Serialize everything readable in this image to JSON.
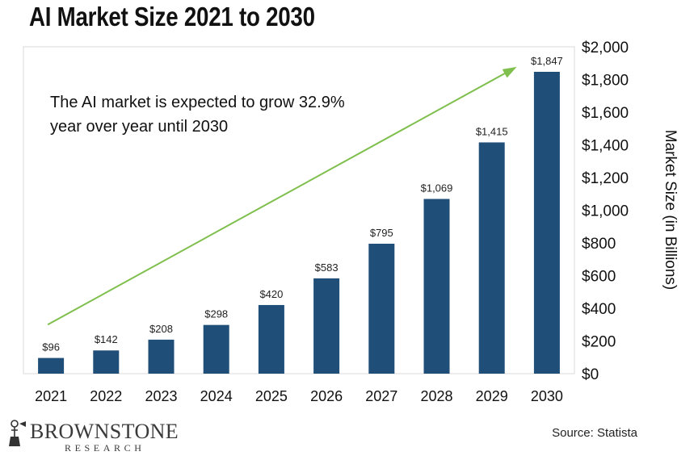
{
  "chart_data": {
    "type": "bar",
    "title": "AI Market Size 2021 to 2030",
    "annotation": "The AI market is expected to grow 32.9% year over year until 2030",
    "annotation_lines": [
      "The AI market is expected to grow 32.9%",
      "year over year until 2030"
    ],
    "categories": [
      "2021",
      "2022",
      "2023",
      "2024",
      "2025",
      "2026",
      "2027",
      "2028",
      "2029",
      "2030"
    ],
    "values": [
      96,
      142,
      208,
      298,
      420,
      583,
      795,
      1069,
      1415,
      1847
    ],
    "value_labels": [
      "$96",
      "$142",
      "$208",
      "$298",
      "$420",
      "$583",
      "$795",
      "$1,069",
      "$1,415",
      "$1,847"
    ],
    "ylabel": "Market Size (in Billions)",
    "ylim": [
      0,
      2000
    ],
    "yticks": [
      0,
      200,
      400,
      600,
      800,
      1000,
      1200,
      1400,
      1600,
      1800,
      2000
    ],
    "ytick_labels": [
      "$0",
      "$200",
      "$400",
      "$600",
      "$800",
      "$1,000",
      "$1,200",
      "$1,400",
      "$1,600",
      "$1,800",
      "$2,000"
    ],
    "yaxis_position": "right",
    "grid": false,
    "trend_arrow": {
      "from": [
        "2021",
        300
      ],
      "to": [
        "2030",
        1870
      ]
    },
    "colors": {
      "bar": "#1f4e79",
      "arrow": "#7fbf4d",
      "frame": "#d9d9d9"
    }
  },
  "source": "Source: Statista",
  "logo": {
    "name": "BROWNSTONE",
    "sub": "RESEARCH",
    "icon": "lamp-icon"
  }
}
